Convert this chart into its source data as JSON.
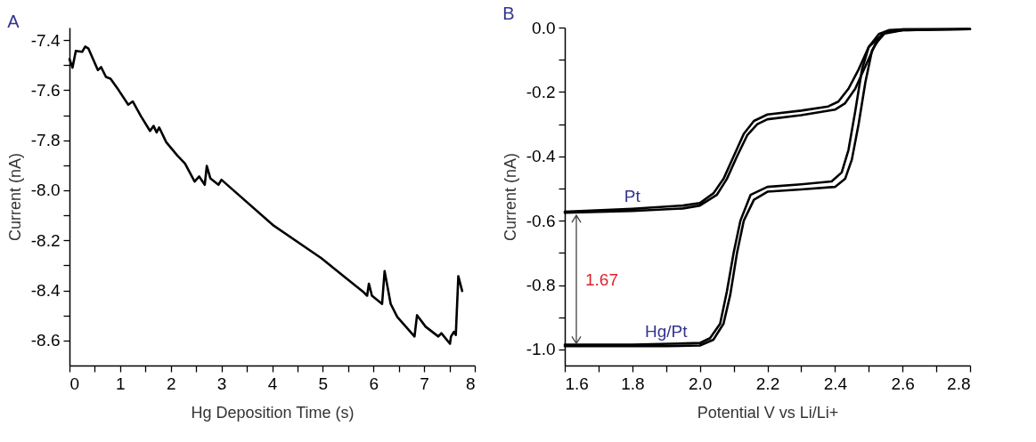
{
  "chart_data": [
    {
      "type": "line",
      "title": "A",
      "xlabel": "Hg Deposition Time (s)",
      "ylabel": "Current (nA)",
      "x": [
        0,
        0.06,
        0.125,
        0.25,
        0.31,
        0.375,
        0.56,
        0.625,
        0.72,
        0.81,
        0.97,
        1.16,
        1.25,
        1.41,
        1.59,
        1.66,
        1.72,
        1.77,
        1.91,
        2.125,
        2.28,
        2.47,
        2.56,
        2.67,
        2.71,
        2.78,
        2.94,
        3.0,
        4.03,
        4.97,
        5.41,
        5.81,
        5.875,
        5.91,
        5.97,
        6.17,
        6.22,
        6.34,
        6.47,
        6.81,
        6.86,
        7.03,
        7.28,
        7.34,
        7.51,
        7.53,
        7.59,
        7.625,
        7.675,
        7.75
      ],
      "series": [
        {
          "color": "#000000",
          "values": [
            -7.476,
            -7.51,
            -7.443,
            -7.447,
            -7.426,
            -7.434,
            -7.52,
            -7.508,
            -7.547,
            -7.554,
            -7.6,
            -7.658,
            -7.645,
            -7.704,
            -7.763,
            -7.743,
            -7.769,
            -7.749,
            -7.808,
            -7.86,
            -7.893,
            -7.965,
            -7.945,
            -7.978,
            -7.903,
            -7.952,
            -7.978,
            -7.958,
            -8.141,
            -8.271,
            -8.343,
            -8.408,
            -8.421,
            -8.373,
            -8.421,
            -8.454,
            -8.323,
            -8.454,
            -8.506,
            -8.584,
            -8.499,
            -8.545,
            -8.584,
            -8.571,
            -8.613,
            -8.584,
            -8.565,
            -8.578,
            -8.343,
            -8.402
          ]
        }
      ],
      "xlim": [
        0,
        8
      ],
      "ylim": [
        -8.7,
        -7.35
      ],
      "xticks": [
        0,
        {
          "value": 0.5,
          "label": null
        },
        1,
        {
          "value": 1.5,
          "label": null
        },
        2,
        {
          "value": 2.5,
          "label": null
        },
        3,
        {
          "value": 3.5,
          "label": null
        },
        4,
        {
          "value": 4.5,
          "label": null
        },
        5,
        {
          "value": 5.5,
          "label": null
        },
        6,
        {
          "value": 6.5,
          "label": null
        },
        7,
        {
          "value": 7.5,
          "label": null
        },
        8
      ],
      "yticks": [
        -8.6,
        {
          "value": -8.5,
          "label": null
        },
        -8.4,
        {
          "value": -8.3,
          "label": null
        },
        -8.2,
        {
          "value": -8.1,
          "label": null
        },
        {
          "value": -8,
          "label": "-8.0"
        },
        {
          "value": -7.9,
          "label": null
        },
        -7.8,
        {
          "value": -7.7,
          "label": null
        },
        -7.6,
        {
          "value": -7.5,
          "label": null
        },
        -7.4
      ],
      "marker": "none",
      "line_style": "solid"
    },
    {
      "type": "line",
      "title": "B",
      "xlabel": "Potential V vs Li/Li+",
      "ylabel": "Current (nA)",
      "series": [
        {
          "name": "Pt",
          "color": "#000000",
          "x": [
            1.6,
            1.8,
            1.95,
            2.0,
            2.05,
            2.08,
            2.11,
            2.14,
            2.17,
            2.2,
            2.3,
            2.4,
            2.43,
            2.46,
            2.49,
            2.52,
            2.55,
            2.6,
            2.7,
            2.8,
            2.8,
            2.6,
            2.56,
            2.53,
            2.5,
            2.47,
            2.44,
            2.41,
            2.38,
            2.3,
            2.2,
            2.16,
            2.13,
            2.1,
            2.07,
            2.04,
            2.0,
            1.95,
            1.8,
            1.6
          ],
          "values": [
            -0.575,
            -0.57,
            -0.562,
            -0.553,
            -0.52,
            -0.47,
            -0.4,
            -0.335,
            -0.3,
            -0.285,
            -0.272,
            -0.255,
            -0.235,
            -0.19,
            -0.12,
            -0.05,
            -0.015,
            -0.008,
            -0.006,
            -0.005,
            -0.005,
            -0.006,
            -0.008,
            -0.02,
            -0.06,
            -0.13,
            -0.19,
            -0.23,
            -0.245,
            -0.258,
            -0.27,
            -0.29,
            -0.33,
            -0.4,
            -0.47,
            -0.515,
            -0.545,
            -0.553,
            -0.563,
            -0.572
          ]
        },
        {
          "name": "Hg/Pt",
          "color": "#000000",
          "x": [
            1.6,
            1.9,
            2.0,
            2.04,
            2.07,
            2.09,
            2.11,
            2.13,
            2.16,
            2.2,
            2.3,
            2.4,
            2.43,
            2.45,
            2.47,
            2.49,
            2.51,
            2.54,
            2.6,
            2.8,
            2.8,
            2.6,
            2.55,
            2.5,
            2.48,
            2.46,
            2.44,
            2.42,
            2.39,
            2.3,
            2.2,
            2.15,
            2.12,
            2.1,
            2.08,
            2.06,
            2.03,
            2.0,
            1.8,
            1.6
          ],
          "values": [
            -0.99,
            -0.99,
            -0.988,
            -0.97,
            -0.92,
            -0.83,
            -0.7,
            -0.6,
            -0.535,
            -0.51,
            -0.503,
            -0.495,
            -0.47,
            -0.41,
            -0.3,
            -0.17,
            -0.07,
            -0.02,
            -0.008,
            -0.005,
            -0.005,
            -0.006,
            -0.012,
            -0.06,
            -0.13,
            -0.26,
            -0.38,
            -0.45,
            -0.478,
            -0.487,
            -0.495,
            -0.52,
            -0.6,
            -0.7,
            -0.82,
            -0.92,
            -0.965,
            -0.98,
            -0.985,
            -0.985
          ]
        }
      ],
      "annotations": [
        "1.67"
      ],
      "xlim": [
        1.6,
        2.8
      ],
      "ylim": [
        -1.05,
        0
      ],
      "xticks": [
        1.6,
        {
          "value": 1.7,
          "label": null
        },
        1.8,
        {
          "value": 1.9,
          "label": null
        },
        {
          "value": 2,
          "label": "2.0"
        },
        {
          "value": 2.1,
          "label": null
        },
        2.2,
        {
          "value": 2.3,
          "label": null
        },
        2.4,
        {
          "value": 2.5,
          "label": null
        },
        2.6,
        {
          "value": 2.7,
          "label": null
        },
        2.8
      ],
      "yticks": [
        {
          "value": -1,
          "label": "-1.0"
        },
        {
          "value": -0.9,
          "label": null
        },
        -0.8,
        {
          "value": -0.7,
          "label": null
        },
        -0.6,
        {
          "value": -0.5,
          "label": null
        },
        -0.4,
        {
          "value": -0.3,
          "label": null
        },
        -0.2,
        {
          "value": -0.1,
          "label": null
        },
        {
          "value": 0,
          "label": "0.0"
        }
      ],
      "marker": "none",
      "line_style": "solid"
    }
  ]
}
